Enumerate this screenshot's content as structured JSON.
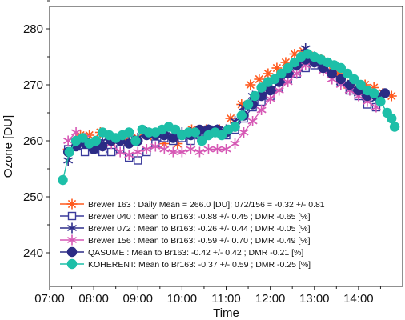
{
  "chart_data": {
    "type": "line",
    "title": "",
    "xlabel": "Time",
    "ylabel": "Ozone [DU]",
    "x_unit": "hour of day",
    "xlim": [
      7.0,
      15.0
    ],
    "ylim": [
      234,
      284
    ],
    "x_ticks": [
      7,
      8,
      9,
      10,
      11,
      12,
      13,
      14
    ],
    "x_tick_labels": [
      "07:00",
      "08:00",
      "09:00",
      "10:00",
      "11:00",
      "12:00",
      "13:00",
      "14:00"
    ],
    "y_ticks": [
      240,
      250,
      260,
      270,
      280
    ],
    "y_tick_labels": [
      "240",
      "250",
      "260",
      "270",
      "280"
    ],
    "grid": false,
    "legend_position": "bottom-left",
    "series": [
      {
        "name": "Brewer 163 : Daily Mean = 266.0 [DU]; 072/156 = -0.32 +/- 0.81",
        "color": "#ff5a1f",
        "marker": "asterisk-plus",
        "line": false,
        "x": [
          7.42,
          7.7,
          7.9,
          8.15,
          8.4,
          8.7,
          9.0,
          9.3,
          9.6,
          9.9,
          10.22,
          10.55,
          10.85,
          11.1,
          11.35,
          11.55,
          11.75,
          11.95,
          12.15,
          12.35,
          12.55,
          12.75,
          12.95,
          13.15,
          13.35,
          13.55,
          13.75,
          13.95,
          14.15,
          14.35,
          14.55,
          14.75
        ],
        "y": [
          258.5,
          261.0,
          261.0,
          261.5,
          260.0,
          260.0,
          260.5,
          261.0,
          259.5,
          259.5,
          262.0,
          262.0,
          262.0,
          264.0,
          266.5,
          270.0,
          271.0,
          272.0,
          273.0,
          274.0,
          275.5,
          276.0,
          275.0,
          274.5,
          273.5,
          272.0,
          270.0,
          269.5,
          270.0,
          269.5,
          268.5,
          268.0
        ]
      },
      {
        "name": "Brewer 040 : Mean to Br163: -0.88 +/- 0.45 ; DMR -0.65 [%]",
        "color": "#3a3a9c",
        "marker": "open-square",
        "line": true,
        "x": [
          7.42,
          7.6,
          7.8,
          8.0,
          8.2,
          8.4,
          8.6,
          8.8,
          9.0,
          9.2,
          9.4,
          9.6,
          9.8,
          10.0,
          10.2,
          10.4,
          10.6,
          10.8,
          11.0,
          11.2,
          11.4,
          11.6,
          11.8,
          12.0,
          12.2,
          12.4,
          12.6,
          12.8,
          13.0,
          13.2,
          13.4,
          13.6,
          13.8,
          14.0,
          14.2,
          14.4
        ],
        "y": [
          258.5,
          259.0,
          258.0,
          258.5,
          258.0,
          258.0,
          258.5,
          257.0,
          256.5,
          258.0,
          259.5,
          260.5,
          260.0,
          260.5,
          260.0,
          261.0,
          262.0,
          261.5,
          261.0,
          262.0,
          264.0,
          266.0,
          267.0,
          268.0,
          269.5,
          271.0,
          272.0,
          273.0,
          273.5,
          274.0,
          272.0,
          270.5,
          269.0,
          268.0,
          266.5,
          266.0
        ]
      },
      {
        "name": "Brewer 072 : Mean to Br163: -0.26 +/- 0.44 ; DMR -0.05 [%]",
        "color": "#2e2e8a",
        "marker": "asterisk",
        "line": true,
        "x": [
          7.42,
          7.6,
          7.8,
          8.0,
          8.2,
          8.4,
          8.6,
          8.8,
          9.0,
          9.2,
          9.4,
          9.6,
          9.8,
          10.0,
          10.2,
          10.4,
          10.6,
          10.8,
          11.0,
          11.2,
          11.4,
          11.6,
          11.8,
          12.0,
          12.2,
          12.4,
          12.6,
          12.8,
          13.0,
          13.2,
          13.4,
          13.6,
          13.8,
          14.0,
          14.2,
          14.4
        ],
        "y": [
          256.5,
          259.5,
          260.0,
          259.5,
          260.0,
          260.5,
          260.0,
          261.0,
          260.5,
          261.5,
          261.0,
          261.0,
          261.0,
          261.5,
          261.5,
          261.0,
          262.0,
          262.0,
          262.0,
          263.5,
          266.0,
          268.0,
          269.0,
          270.0,
          271.5,
          272.5,
          274.0,
          276.5,
          275.0,
          273.5,
          272.0,
          270.5,
          269.0,
          268.5,
          268.0,
          267.5
        ]
      },
      {
        "name": "Brewer 156 : Mean to Br163: -0.59 +/- 0.70 ; DMR -0.49 [%]",
        "color": "#d659b5",
        "marker": "asterisk",
        "line": true,
        "x": [
          7.42,
          7.6,
          7.8,
          8.0,
          8.2,
          8.4,
          8.6,
          8.8,
          9.0,
          9.2,
          9.4,
          9.6,
          9.8,
          10.0,
          10.2,
          10.4,
          10.6,
          10.8,
          11.0,
          11.2,
          11.4,
          11.6,
          11.8,
          12.0,
          12.2,
          12.4,
          12.6,
          12.8,
          13.0,
          13.2,
          13.4,
          13.6,
          13.8,
          14.0,
          14.2,
          14.4
        ],
        "y": [
          260.0,
          261.5,
          260.5,
          259.5,
          259.0,
          259.5,
          258.0,
          257.5,
          258.0,
          258.5,
          259.0,
          258.5,
          258.0,
          258.0,
          258.5,
          258.0,
          258.5,
          258.5,
          258.5,
          259.5,
          261.5,
          263.5,
          265.5,
          267.5,
          269.0,
          270.5,
          272.0,
          273.5,
          274.0,
          272.5,
          271.0,
          270.0,
          269.0,
          268.0,
          267.0,
          266.0
        ]
      },
      {
        "name": "QASUME   : Mean to Br163: -0.42 +/- 0.42 ; DMR -0.21 [%]",
        "color": "#2b2b85",
        "marker": "filled-circle",
        "line": true,
        "x": [
          7.42,
          7.6,
          7.8,
          8.0,
          8.2,
          8.4,
          8.6,
          8.8,
          9.0,
          9.2,
          9.4,
          9.6,
          9.8,
          10.0,
          10.2,
          10.4,
          10.6,
          10.8,
          11.0,
          11.2,
          11.4,
          11.6,
          11.8,
          12.0,
          12.2,
          12.4,
          12.6,
          12.8,
          13.0,
          13.2,
          13.4,
          13.6,
          13.8,
          14.0,
          14.2,
          14.4,
          14.6
        ],
        "y": [
          258.0,
          259.0,
          259.5,
          258.5,
          259.0,
          260.0,
          260.0,
          259.5,
          260.0,
          261.0,
          261.0,
          261.0,
          260.5,
          261.0,
          261.0,
          262.0,
          262.0,
          262.0,
          261.5,
          262.5,
          264.5,
          266.5,
          268.0,
          269.0,
          270.5,
          272.0,
          273.5,
          274.5,
          274.0,
          273.0,
          272.0,
          271.0,
          270.0,
          269.0,
          268.0,
          268.0,
          268.5
        ]
      },
      {
        "name": "KOHERENT: Mean to Br163: -0.37 +/- 0.59 ; DMR -0.25 [%]",
        "color": "#1dbfa8",
        "marker": "filled-circle",
        "line": true,
        "x": [
          7.3,
          7.45,
          7.6,
          7.75,
          7.9,
          8.05,
          8.2,
          8.35,
          8.5,
          8.65,
          8.8,
          8.95,
          9.1,
          9.25,
          9.4,
          9.55,
          9.7,
          9.85,
          10.0,
          10.15,
          10.3,
          10.45,
          10.6,
          10.75,
          10.9,
          11.05,
          11.2,
          11.35,
          11.5,
          11.65,
          11.8,
          11.95,
          12.1,
          12.25,
          12.4,
          12.55,
          12.7,
          12.85,
          13.0,
          13.15,
          13.3,
          13.45,
          13.6,
          13.75,
          13.9,
          14.05,
          14.2,
          14.35,
          14.5,
          14.65,
          14.75,
          14.82
        ],
        "y": [
          253.0,
          258.0,
          260.0,
          260.5,
          259.5,
          260.0,
          261.5,
          261.0,
          260.5,
          261.0,
          261.5,
          260.0,
          262.0,
          261.5,
          261.5,
          262.0,
          262.5,
          262.0,
          261.0,
          261.5,
          261.5,
          260.0,
          261.0,
          261.5,
          261.0,
          262.0,
          262.5,
          264.5,
          266.5,
          268.0,
          269.5,
          270.5,
          271.0,
          272.0,
          273.0,
          274.0,
          275.0,
          275.5,
          275.0,
          274.5,
          274.0,
          273.5,
          273.0,
          272.0,
          271.0,
          270.0,
          269.0,
          268.5,
          267.0,
          265.0,
          264.0,
          262.5
        ]
      }
    ]
  }
}
